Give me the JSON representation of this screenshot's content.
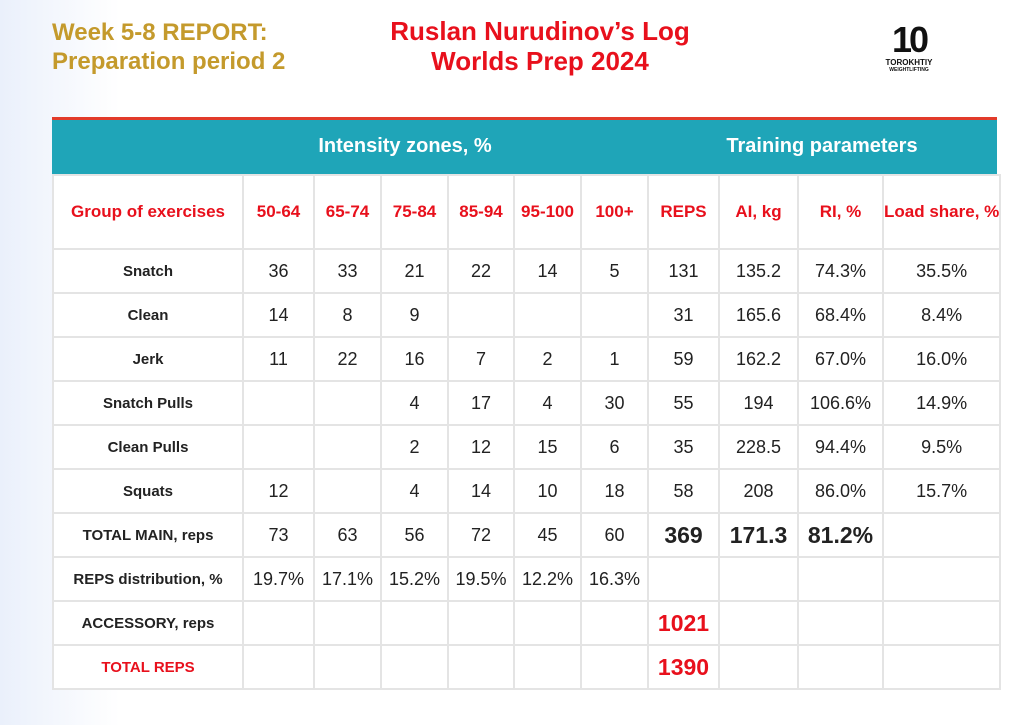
{
  "header": {
    "report": [
      "Week 5-8 REPORT:",
      "Preparation period 2"
    ],
    "title": [
      "Ruslan Nurudinov’s Log",
      "Worlds Prep 2024"
    ],
    "logo": {
      "mark": "10",
      "brand": "TOROKHTIY",
      "tagline": "WEIGHTLIFTING"
    }
  },
  "table": {
    "group_headers": [
      "Intensity zones, %",
      "Training parameters"
    ],
    "columns": [
      "Group of exercises",
      "50-64",
      "65-74",
      "75-84",
      "85-94",
      "95-100",
      "100+",
      "REPS",
      "AI, kg",
      "RI, %",
      "Load share, %"
    ],
    "rows": [
      [
        "Snatch",
        "36",
        "33",
        "21",
        "22",
        "14",
        "5",
        "131",
        "135.2",
        "74.3%",
        "35.5%"
      ],
      [
        "Clean",
        "14",
        "8",
        "9",
        null,
        null,
        null,
        "31",
        "165.6",
        "68.4%",
        "8.4%"
      ],
      [
        "Jerk",
        "11",
        "22",
        "16",
        "7",
        "2",
        "1",
        "59",
        "162.2",
        "67.0%",
        "16.0%"
      ],
      [
        "Snatch Pulls",
        null,
        null,
        "4",
        "17",
        "4",
        "30",
        "55",
        "194",
        "106.6%",
        "14.9%"
      ],
      [
        "Clean Pulls",
        null,
        null,
        "2",
        "12",
        "15",
        "6",
        "35",
        "228.5",
        "94.4%",
        "9.5%"
      ],
      [
        "Squats",
        "12",
        null,
        "4",
        "14",
        "10",
        "18",
        "58",
        "208",
        "86.0%",
        "15.7%"
      ],
      [
        "TOTAL MAIN, reps",
        "73",
        "63",
        "56",
        "72",
        "45",
        "60",
        "369",
        "171.3",
        "81.2%",
        null
      ],
      [
        "REPS distribution, %",
        "19.7%",
        "17.1%",
        "15.2%",
        "19.5%",
        "12.2%",
        "16.3%",
        null,
        null,
        null,
        null
      ],
      [
        "ACCESSORY, reps",
        null,
        null,
        null,
        null,
        null,
        null,
        "1021",
        null,
        null,
        null
      ],
      [
        "TOTAL REPS",
        null,
        null,
        null,
        null,
        null,
        null,
        "1390",
        null,
        null,
        null
      ]
    ]
  }
}
